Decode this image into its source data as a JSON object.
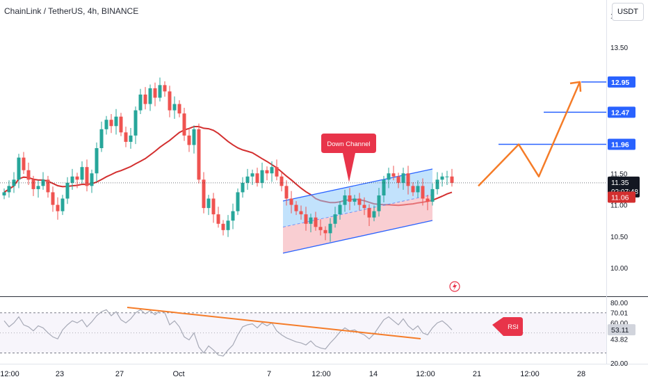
{
  "header": {
    "title": "ChainLink / TetherUS, 4h, BINANCE",
    "currency": "USDT"
  },
  "colors": {
    "up": "#26a69a",
    "down": "#ef5350",
    "ma": "#d32f2f",
    "channel_line": "#2962ff",
    "channel_upper_fill": "#90caf9",
    "channel_lower_fill": "#f4a6ad",
    "projection": "#f57c28",
    "level": "#2962ff",
    "rsi_line": "#a6a9b6",
    "rsi_band": "#7e57c2",
    "rsi_trend": "#f57c28",
    "label_red": "#e8344a"
  },
  "chart_data": [
    {
      "type": "candlestick",
      "title": "ChainLink / TetherUS, 4h, BINANCE",
      "ylim": [
        9.55,
        14.25
      ],
      "y_ticks": [
        "14.00",
        "13.50",
        "13.00",
        "12.50",
        "12.00",
        "11.50",
        "11.00",
        "10.50",
        "10.00"
      ],
      "x_ticks": [
        "12:00",
        "23",
        "27",
        "Oct",
        "7",
        "12:00",
        "14",
        "12:00",
        "21",
        "12:00",
        "28"
      ],
      "closes": [
        11.2,
        11.3,
        11.4,
        11.75,
        11.55,
        11.4,
        11.25,
        11.3,
        11.4,
        11.2,
        11.0,
        10.9,
        11.1,
        11.35,
        11.45,
        11.4,
        11.6,
        11.3,
        11.5,
        11.9,
        12.2,
        12.35,
        12.25,
        12.4,
        12.15,
        12.0,
        12.1,
        12.5,
        12.75,
        12.6,
        12.85,
        12.7,
        12.9,
        12.8,
        12.5,
        12.6,
        12.45,
        12.1,
        11.95,
        12.2,
        11.4,
        10.95,
        11.1,
        10.85,
        10.7,
        10.6,
        10.75,
        10.9,
        11.2,
        11.35,
        11.45,
        11.5,
        11.35,
        11.55,
        11.5,
        11.6,
        11.45,
        11.3,
        11.1,
        11.0,
        10.9,
        10.85,
        10.7,
        10.8,
        10.65,
        10.6,
        10.55,
        10.7,
        10.85,
        11.0,
        11.15,
        11.05,
        11.1,
        11.0,
        10.95,
        10.8,
        10.9,
        11.15,
        11.4,
        11.5,
        11.45,
        11.35,
        11.5,
        11.3,
        11.2,
        11.3,
        11.1,
        11.05,
        11.25,
        11.4,
        11.45,
        11.45,
        11.35
      ],
      "price_levels": [
        {
          "label": "12.95",
          "value": 12.95
        },
        {
          "label": "12.47",
          "value": 12.47
        },
        {
          "label": "11.96",
          "value": 11.96
        }
      ],
      "current_price": {
        "value": "11.35",
        "countdown": "02:07:48"
      },
      "ma_label": "11.06",
      "projection_path": [
        11.3,
        11.96,
        11.45,
        12.95
      ],
      "annotations": [
        "Down Channel"
      ]
    },
    {
      "type": "line",
      "name": "RSI",
      "ylim": [
        20,
        85
      ],
      "y_ticks": [
        "80.00",
        "70.01",
        "60.00",
        "43.82",
        "20.00"
      ],
      "band": [
        30,
        70
      ],
      "current_value": "53.11",
      "values": [
        62,
        56,
        60,
        66,
        58,
        56,
        52,
        57,
        55,
        50,
        46,
        44,
        53,
        58,
        62,
        60,
        63,
        56,
        61,
        67,
        71,
        73,
        67,
        71,
        63,
        60,
        64,
        70,
        73,
        69,
        72,
        68,
        72,
        70,
        58,
        62,
        56,
        46,
        43,
        50,
        36,
        30,
        37,
        33,
        28,
        27,
        33,
        38,
        48,
        56,
        58,
        59,
        55,
        60,
        57,
        60,
        52,
        48,
        45,
        43,
        41,
        40,
        38,
        42,
        37,
        35,
        34,
        40,
        45,
        51,
        55,
        52,
        53,
        50,
        48,
        44,
        49,
        56,
        63,
        66,
        62,
        58,
        64,
        57,
        53,
        57,
        50,
        48,
        55,
        60,
        62,
        58,
        53
      ],
      "annotations": [
        "RSI"
      ]
    }
  ]
}
